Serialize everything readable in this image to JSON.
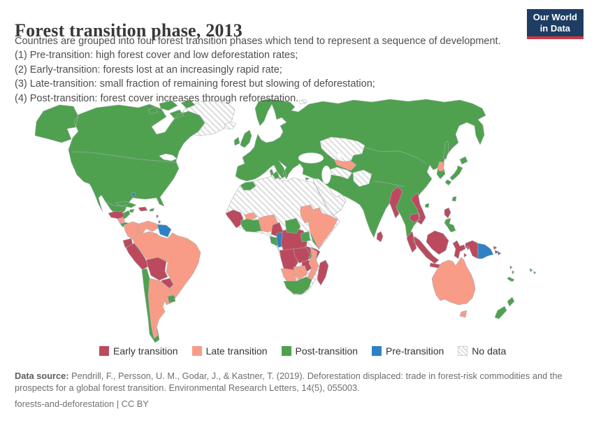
{
  "header": {
    "title": "Forest transition phase, 2013",
    "logo": {
      "line1": "Our World",
      "line2": "in Data"
    },
    "subtitle_lines": [
      "Countries are grouped into four forest transition phases which tend to represent a sequence of development.",
      "(1) Pre-transition: high forest cover and low deforestation rates;",
      "(2) Early-transition: forests lost at an increasingly rapid rate;",
      "(3) Late-transition: small fraction of remaining forest but slowing of deforestation;",
      "(4) Post-transition: forest cover increases through reforestation."
    ]
  },
  "legend": {
    "items": [
      {
        "label": "Early transition",
        "phase": "early"
      },
      {
        "label": "Late transition",
        "phase": "late"
      },
      {
        "label": "Post-transition",
        "phase": "post"
      },
      {
        "label": "Pre-transition",
        "phase": "pre"
      },
      {
        "label": "No data",
        "phase": "no_data"
      }
    ]
  },
  "footer": {
    "source_label": "Data source:",
    "source_text": "Pendrill, F., Persson, U. M., Godar, J., & Kastner, T. (2019). Deforestation displaced: trade in forest-risk commodities and the prospects for a global forest transition. Environmental Research Letters, 14(5), 055003.",
    "license_line": "forests-and-deforestation | CC BY"
  },
  "colors": {
    "early": "#bc4a5e",
    "late": "#f89c87",
    "post": "#4fa14f",
    "pre": "#2f81c4",
    "hatch_line": "#dcdcdc",
    "region_border": "#a6b1b4",
    "logo_navy": "#1d3d63",
    "logo_red": "#cb3748"
  },
  "chart_data": {
    "type": "choropleth-map",
    "title": "Forest transition phase, 2013",
    "year": 2013,
    "legend_categories": [
      "Early transition",
      "Late transition",
      "Post-transition",
      "Pre-transition",
      "No data"
    ],
    "regions": {
      "greenland": "no_data",
      "iceland": "no_data",
      "svalbard": "no_data",
      "russian-arctic-islands": "no_data",
      "north-america": "post",
      "guatemala-honduras": "early",
      "nicaragua": "late",
      "costa-rica-panama": "post",
      "cuba": "post",
      "jamaica": "post",
      "hispaniola": "early",
      "puerto-rico": "post",
      "bahamas": "pre",
      "lesser-antilles": "early",
      "colombia": "late",
      "venezuela": "late",
      "guyana-suriname": "pre",
      "brazil": "late",
      "ecuador": "early",
      "peru": "early",
      "bolivia": "early",
      "paraguay": "early",
      "chile": "post",
      "argentina": "late",
      "uruguay": "post",
      "eurasia": "post",
      "uk": "post",
      "ireland": "post",
      "mediterranean-islands": "post",
      "kazakhstan": "no_data",
      "uzbekistan": "late",
      "turkmenistan": "no_data",
      "afghanistan": "no_data",
      "middle-east": "no_data",
      "north-korea": "late",
      "myanmar": "early",
      "vietnam-cambodia": "early",
      "sri-lanka": "early",
      "japan": "post",
      "sakhalin": "post",
      "taiwan": "post",
      "hainan": "post",
      "philippines-luzon": "early",
      "philippines-south": "post",
      "indonesia-malaysia": "early",
      "papua-new-guinea": "pre",
      "solomon-islands": "early",
      "vanuatu": "post",
      "new-caledonia": "post",
      "fiji": "post",
      "australia": "late",
      "new-zealand": "post",
      "africa": "no_data",
      "morocco": "post",
      "tunisia": "post",
      "west-africa-coast": "early",
      "burkina-faso": "late",
      "cote-divoire-ghana": "post",
      "nigeria-benin": "late",
      "chad": "late",
      "cameroon": "early",
      "gabon": "post",
      "congo": "pre",
      "dr-congo": "early",
      "south-sudan": "post",
      "uganda": "post",
      "kenya": "post",
      "horn-of-africa": "late",
      "tanzania": "early",
      "angola": "early",
      "zambia": "early",
      "zimbabwe": "early",
      "malawi": "post",
      "mozambique": "late",
      "namibia": "late",
      "botswana": "late",
      "south-africa": "post",
      "madagascar": "early"
    }
  }
}
